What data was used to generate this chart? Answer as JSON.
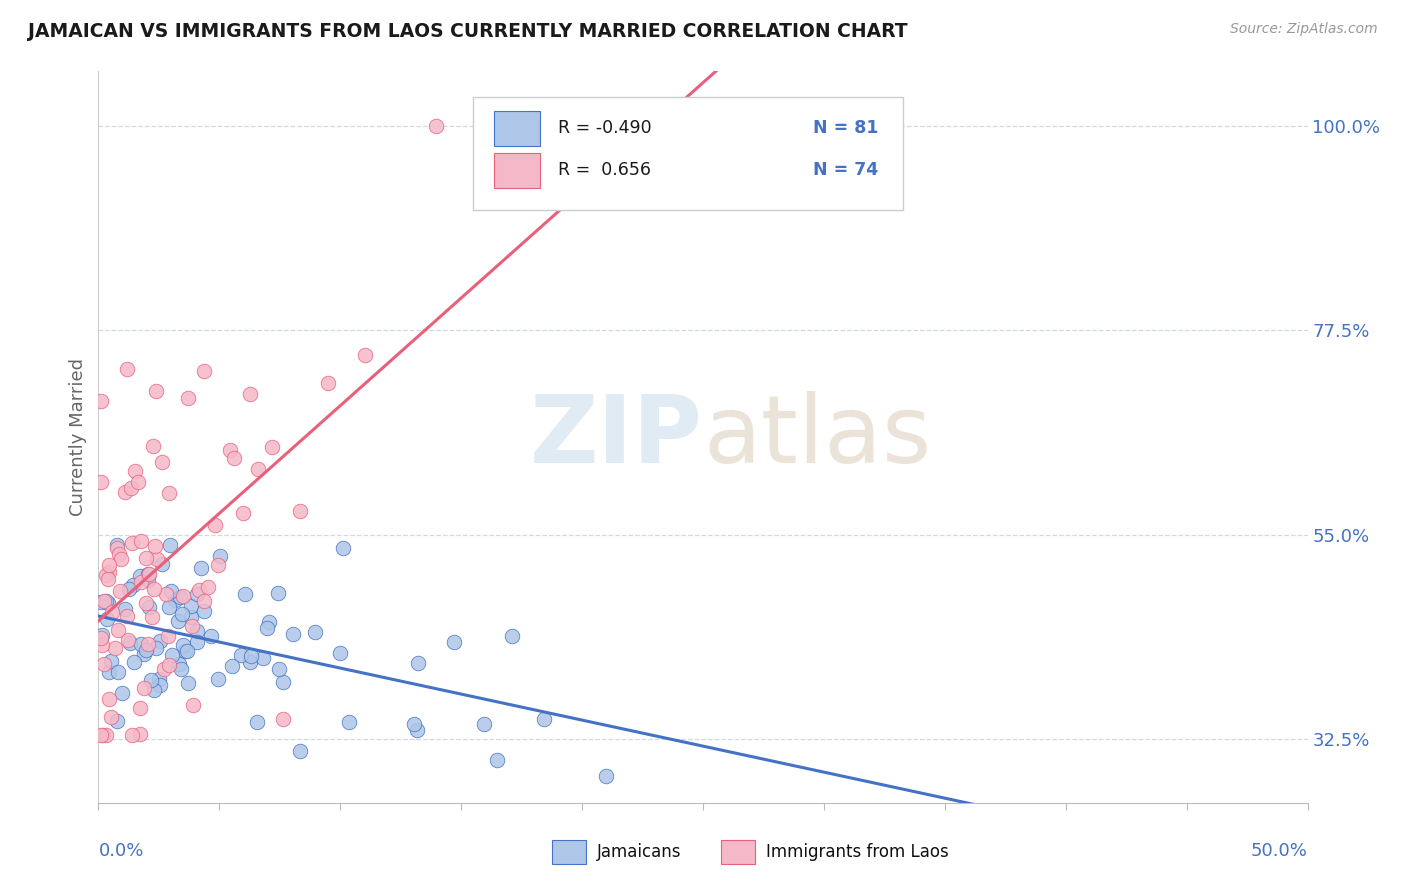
{
  "title": "JAMAICAN VS IMMIGRANTS FROM LAOS CURRENTLY MARRIED CORRELATION CHART",
  "source": "Source: ZipAtlas.com",
  "ylabel": "Currently Married",
  "y_tick_labels": [
    "32.5%",
    "55.0%",
    "77.5%",
    "100.0%"
  ],
  "y_tick_values": [
    0.325,
    0.55,
    0.775,
    1.0
  ],
  "xlim": [
    0.0,
    0.5
  ],
  "ylim": [
    0.255,
    1.06
  ],
  "jamaicans_R": -0.49,
  "jamaicans_N": 81,
  "laos_R": 0.656,
  "laos_N": 74,
  "jamaicans_color": "#aec6e8",
  "laos_color": "#f5b8c8",
  "jamaicans_line_color": "#4472c4",
  "laos_line_color": "#e8607a",
  "title_color": "#1a1a1a",
  "axis_label_color": "#4472c4",
  "background_color": "#ffffff",
  "grid_color": "#d0d8e8",
  "legend_R_color": "#1a1a1a",
  "legend_N_color": "#4472c4"
}
